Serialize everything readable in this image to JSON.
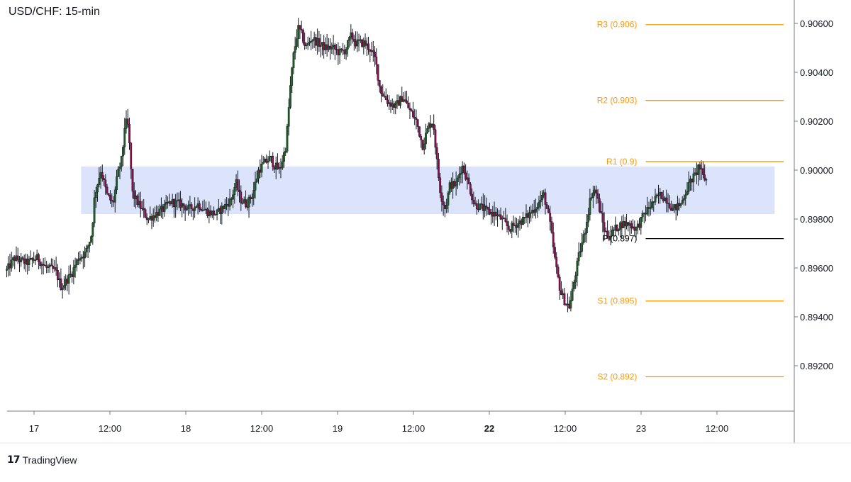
{
  "header": {
    "title": "USD/CHF: 15-min"
  },
  "branding": {
    "logo_icon": "tradingview-logo-icon",
    "mark": "17",
    "name": "TradingView"
  },
  "colors": {
    "up": "#1b5e20",
    "down": "#880e4f",
    "wick": "#131722",
    "pivot_levels": "#ff9800",
    "pivot_main": "#000000",
    "zone_fill": "#dbe4fb",
    "axis_text": "#131722",
    "grid": "#e0e3eb"
  },
  "chart_data": {
    "type": "candlestick",
    "title": "USD/CHF: 15-min",
    "x_ticks": [
      {
        "label": "17",
        "day": 0.0
      },
      {
        "label": "12:00",
        "day": 0.5
      },
      {
        "label": "18",
        "day": 1.0
      },
      {
        "label": "12:00",
        "day": 1.5
      },
      {
        "label": "19",
        "day": 2.0
      },
      {
        "label": "12:00",
        "day": 2.5
      },
      {
        "label": "22",
        "day": 3.0,
        "bold": true
      },
      {
        "label": "12:00",
        "day": 3.5
      },
      {
        "label": "23",
        "day": 4.0
      },
      {
        "label": "12:00",
        "day": 4.5
      }
    ],
    "x_range_days": [
      -0.2,
      4.97
    ],
    "y_range": [
      0.8905,
      0.90665
    ],
    "y_ticks": [
      "0.90600",
      "0.90400",
      "0.90200",
      "0.90000",
      "0.89800",
      "0.89600",
      "0.89400",
      "0.89200"
    ],
    "pivot_levels": [
      {
        "label": "R3 (0.906)",
        "value": 0.90595,
        "main": false
      },
      {
        "label": "R2 (0.903)",
        "value": 0.90285,
        "main": false
      },
      {
        "label": "R1 (0.9)",
        "value": 0.90035,
        "main": false
      },
      {
        "label": "P (0.897)",
        "value": 0.8972,
        "main": true
      },
      {
        "label": "S1 (0.895)",
        "value": 0.89465,
        "main": false
      },
      {
        "label": "S2 (0.892)",
        "value": 0.89155,
        "main": false
      }
    ],
    "pivot_x_start_day": 4.03,
    "pivot_x_end_day": 4.94,
    "zone": {
      "low": 0.8982,
      "high": 0.90015,
      "start_day": 0.31,
      "end_day": 4.88
    },
    "price_path": [
      [
        -0.18,
        0.8959
      ],
      [
        -0.13,
        0.8964
      ],
      [
        -0.05,
        0.8962
      ],
      [
        0.02,
        0.8964
      ],
      [
        0.08,
        0.896
      ],
      [
        0.14,
        0.8959
      ],
      [
        0.18,
        0.8952
      ],
      [
        0.25,
        0.8958
      ],
      [
        0.29,
        0.8964
      ],
      [
        0.34,
        0.8966
      ],
      [
        0.38,
        0.8974
      ],
      [
        0.4,
        0.899
      ],
      [
        0.44,
        0.9
      ],
      [
        0.48,
        0.899
      ],
      [
        0.52,
        0.8986
      ],
      [
        0.55,
        0.8998
      ],
      [
        0.58,
        0.9005
      ],
      [
        0.6,
        0.902
      ],
      [
        0.62,
        0.9018
      ],
      [
        0.65,
        0.899
      ],
      [
        0.7,
        0.8985
      ],
      [
        0.75,
        0.898
      ],
      [
        0.8,
        0.8982
      ],
      [
        0.85,
        0.8984
      ],
      [
        0.9,
        0.8987
      ],
      [
        0.97,
        0.8986
      ],
      [
        1.02,
        0.8984
      ],
      [
        1.08,
        0.8986
      ],
      [
        1.14,
        0.8983
      ],
      [
        1.2,
        0.8982
      ],
      [
        1.25,
        0.8985
      ],
      [
        1.3,
        0.8988
      ],
      [
        1.33,
        0.8995
      ],
      [
        1.36,
        0.8988
      ],
      [
        1.4,
        0.8986
      ],
      [
        1.44,
        0.899
      ],
      [
        1.48,
        0.9
      ],
      [
        1.52,
        0.9003
      ],
      [
        1.56,
        0.9005
      ],
      [
        1.58,
        0.9002
      ],
      [
        1.62,
        0.9
      ],
      [
        1.66,
        0.901
      ],
      [
        1.69,
        0.9035
      ],
      [
        1.71,
        0.9047
      ],
      [
        1.74,
        0.9058
      ],
      [
        1.76,
        0.9056
      ],
      [
        1.79,
        0.905
      ],
      [
        1.83,
        0.9054
      ],
      [
        1.87,
        0.9052
      ],
      [
        1.92,
        0.905
      ],
      [
        1.97,
        0.905
      ],
      [
        2.01,
        0.9048
      ],
      [
        2.05,
        0.9049
      ],
      [
        2.09,
        0.9055
      ],
      [
        2.12,
        0.9052
      ],
      [
        2.17,
        0.9052
      ],
      [
        2.21,
        0.905
      ],
      [
        2.25,
        0.9045
      ],
      [
        2.28,
        0.9033
      ],
      [
        2.33,
        0.9028
      ],
      [
        2.38,
        0.9026
      ],
      [
        2.43,
        0.903
      ],
      [
        2.47,
        0.9025
      ],
      [
        2.52,
        0.902
      ],
      [
        2.56,
        0.901
      ],
      [
        2.6,
        0.9018
      ],
      [
        2.63,
        0.902
      ],
      [
        2.66,
        0.9
      ],
      [
        2.68,
        0.899
      ],
      [
        2.71,
        0.8984
      ],
      [
        2.74,
        0.8994
      ],
      [
        2.78,
        0.8994
      ],
      [
        2.82,
        0.9002
      ],
      [
        2.86,
        0.8995
      ],
      [
        2.9,
        0.8986
      ],
      [
        2.94,
        0.8985
      ],
      [
        2.99,
        0.8983
      ],
      [
        3.04,
        0.8982
      ],
      [
        3.08,
        0.898
      ],
      [
        3.13,
        0.8976
      ],
      [
        3.18,
        0.8978
      ],
      [
        3.23,
        0.898
      ],
      [
        3.28,
        0.8983
      ],
      [
        3.33,
        0.8987
      ],
      [
        3.36,
        0.899
      ],
      [
        3.4,
        0.8978
      ],
      [
        3.44,
        0.896
      ],
      [
        3.47,
        0.895
      ],
      [
        3.5,
        0.8946
      ],
      [
        3.53,
        0.8944
      ],
      [
        3.56,
        0.8955
      ],
      [
        3.59,
        0.8965
      ],
      [
        3.63,
        0.8975
      ],
      [
        3.67,
        0.899
      ],
      [
        3.7,
        0.8992
      ],
      [
        3.73,
        0.8983
      ],
      [
        3.76,
        0.8975
      ],
      [
        3.79,
        0.8973
      ],
      [
        3.83,
        0.8976
      ],
      [
        3.87,
        0.8978
      ],
      [
        3.92,
        0.8978
      ],
      [
        3.97,
        0.8976
      ],
      [
        4.02,
        0.8982
      ],
      [
        4.07,
        0.8986
      ],
      [
        4.12,
        0.899
      ],
      [
        4.17,
        0.8988
      ],
      [
        4.21,
        0.8984
      ],
      [
        4.26,
        0.8986
      ],
      [
        4.3,
        0.8992
      ],
      [
        4.33,
        0.8996
      ],
      [
        4.36,
        0.8998
      ],
      [
        4.38,
        0.9002
      ],
      [
        4.41,
        0.8997
      ],
      [
        4.43,
        0.8996
      ]
    ]
  }
}
